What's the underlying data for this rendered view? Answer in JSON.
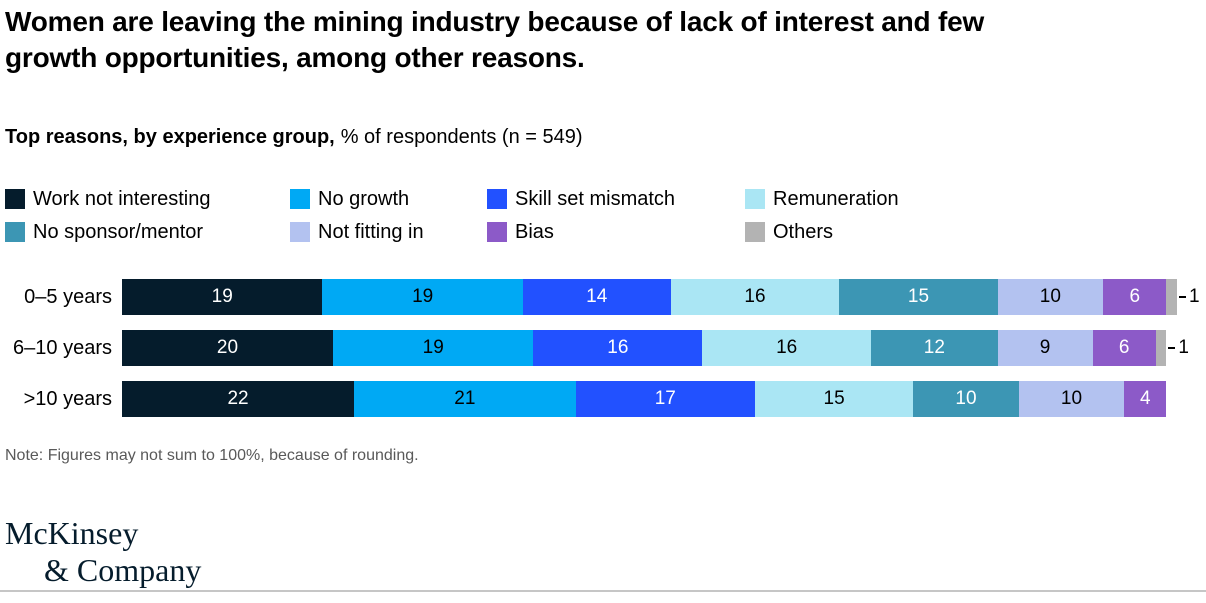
{
  "title": {
    "line1": "Women are leaving the mining industry because of lack of interest and few",
    "line2": "growth opportunities, among other reasons."
  },
  "subtitle": {
    "bold": "Top reasons, by experience group,",
    "regular": "% of respondents (n = 549)"
  },
  "note": "Note: Figures may not sum to 100%, because of rounding.",
  "logo": {
    "line1": "McKinsey",
    "line2": "& Company"
  },
  "colors": {
    "brand_navy": "#051C2C",
    "rule_gray": "#C6C6C6",
    "note_gray": "#595959"
  },
  "chart_data": {
    "type": "bar",
    "stacked": true,
    "orientation": "horizontal",
    "title": "Top reasons, by experience group, % of respondents (n = 549)",
    "categories": [
      "0–5 years",
      "6–10 years",
      ">10 years"
    ],
    "series": [
      {
        "name": "Work not interesting",
        "color": "#051C2C",
        "label_color": "#ffffff",
        "values": [
          19,
          20,
          22
        ]
      },
      {
        "name": "No growth",
        "color": "#00A9F4",
        "label_color": "#000000",
        "values": [
          19,
          19,
          21
        ]
      },
      {
        "name": "Skill set mismatch",
        "color": "#2251FF",
        "label_color": "#ffffff",
        "values": [
          14,
          16,
          17
        ]
      },
      {
        "name": "Remuneration",
        "color": "#AAE6F4",
        "label_color": "#000000",
        "values": [
          16,
          16,
          15
        ]
      },
      {
        "name": "No sponsor/mentor",
        "color": "#3C96B4",
        "label_color": "#ffffff",
        "values": [
          15,
          12,
          10
        ]
      },
      {
        "name": "Not fitting in",
        "color": "#B3C2F0",
        "label_color": "#000000",
        "values": [
          10,
          9,
          10
        ]
      },
      {
        "name": "Bias",
        "color": "#8C5AC8",
        "label_color": "#ffffff",
        "values": [
          6,
          6,
          4
        ]
      },
      {
        "name": "Others",
        "color": "#B3B3B3",
        "label_color": "#000000",
        "values": [
          1,
          1,
          0
        ]
      }
    ],
    "xlim": [
      0,
      100
    ],
    "grid": false,
    "legend_position": "top",
    "value_labels": true,
    "outside_label_note": "Segments smaller than 3% are labeled outside the bar with a leader line"
  }
}
